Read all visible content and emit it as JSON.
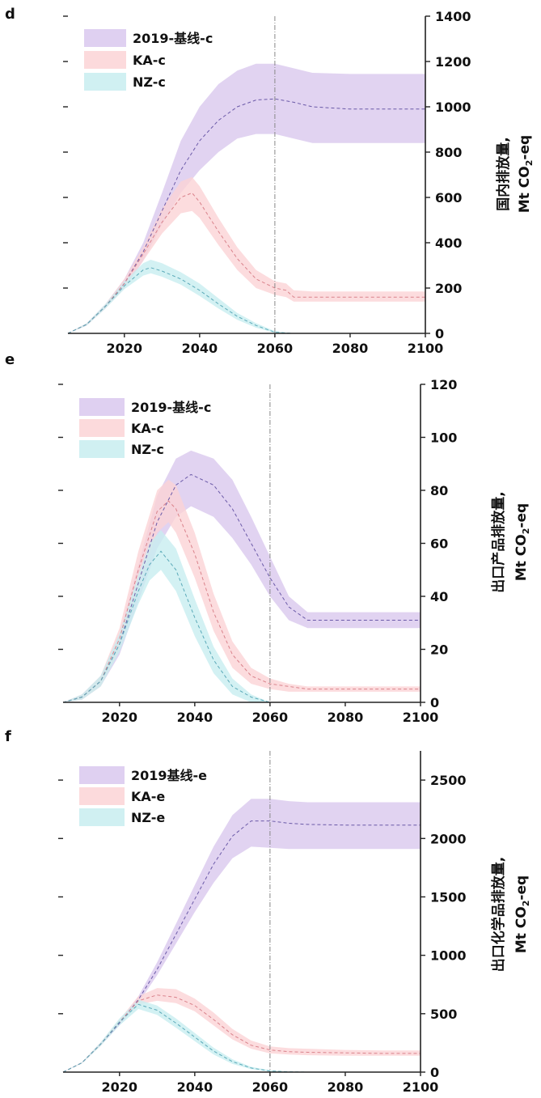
{
  "colors": {
    "purple_fill": "#d9c8ee",
    "purple_line": "#6b5aa8",
    "pink_fill": "#fbd3d6",
    "pink_line": "#d9828b",
    "cyan_fill": "#c8edf0",
    "cyan_line": "#5aa9b8"
  },
  "chart_data": [
    {
      "type": "area",
      "panel": "d",
      "ylabel_line1": "国内排放量,",
      "ylabel_line2_prefix": "Mt CO",
      "ylabel_line2_sub": "2",
      "ylabel_line2_suffix": "-eq",
      "xlim": [
        2005,
        2100
      ],
      "ylim": [
        0,
        1400
      ],
      "xticks": [
        2020,
        2040,
        2060,
        2080,
        2100
      ],
      "yticks": [
        0,
        200,
        400,
        600,
        800,
        1000,
        1200,
        1400
      ],
      "vline": 2060,
      "legend_position": "top-left",
      "series": [
        {
          "name": "2019-基线-c",
          "color": "purple",
          "x": [
            2005,
            2010,
            2015,
            2020,
            2025,
            2030,
            2035,
            2040,
            2045,
            2050,
            2055,
            2060,
            2065,
            2070,
            2080,
            2090,
            2100
          ],
          "median": [
            0,
            40,
            120,
            220,
            360,
            540,
            720,
            850,
            940,
            1000,
            1030,
            1035,
            1020,
            1000,
            990,
            990,
            990
          ],
          "lower": [
            0,
            35,
            110,
            200,
            320,
            480,
            620,
            720,
            800,
            860,
            880,
            880,
            860,
            840,
            840,
            840,
            840
          ],
          "upper": [
            0,
            45,
            130,
            240,
            400,
            620,
            850,
            1000,
            1100,
            1160,
            1190,
            1190,
            1170,
            1150,
            1145,
            1145,
            1145
          ]
        },
        {
          "name": "KA-c",
          "color": "pink",
          "x": [
            2005,
            2010,
            2015,
            2020,
            2025,
            2030,
            2035,
            2038,
            2040,
            2045,
            2050,
            2055,
            2060,
            2063,
            2065,
            2070,
            2080,
            2090,
            2100
          ],
          "median": [
            0,
            40,
            120,
            220,
            350,
            490,
            600,
            620,
            580,
            450,
            330,
            240,
            200,
            190,
            160,
            160,
            160,
            160,
            160
          ],
          "lower": [
            0,
            35,
            110,
            200,
            320,
            440,
            530,
            540,
            510,
            390,
            280,
            200,
            170,
            160,
            140,
            140,
            140,
            140,
            140
          ],
          "upper": [
            0,
            45,
            130,
            240,
            380,
            550,
            670,
            690,
            650,
            510,
            380,
            280,
            230,
            220,
            190,
            185,
            185,
            185,
            185
          ]
        },
        {
          "name": "NZ-c",
          "color": "cyan",
          "x": [
            2005,
            2010,
            2015,
            2020,
            2025,
            2027,
            2030,
            2035,
            2040,
            2045,
            2050,
            2055,
            2060,
            2065,
            2070,
            2080,
            2090,
            2100
          ],
          "median": [
            0,
            40,
            120,
            210,
            280,
            290,
            275,
            240,
            190,
            130,
            75,
            35,
            5,
            0,
            0,
            0,
            0,
            0
          ],
          "lower": [
            0,
            35,
            110,
            195,
            255,
            265,
            250,
            215,
            165,
            110,
            60,
            25,
            2,
            0,
            0,
            0,
            0,
            0
          ],
          "upper": [
            0,
            45,
            130,
            230,
            310,
            325,
            310,
            270,
            220,
            155,
            90,
            45,
            10,
            0,
            0,
            0,
            0,
            0
          ]
        }
      ]
    },
    {
      "type": "area",
      "panel": "e",
      "ylabel_line1": "出口产品排放量,",
      "ylabel_line2_prefix": "Mt CO",
      "ylabel_line2_sub": "2",
      "ylabel_line2_suffix": "-eq",
      "xlim": [
        2005,
        2100
      ],
      "ylim": [
        0,
        120
      ],
      "xticks": [
        2020,
        2040,
        2060,
        2080,
        2100
      ],
      "yticks": [
        0,
        20,
        40,
        60,
        80,
        100,
        120
      ],
      "vline": 2060,
      "legend_position": "top-left",
      "series": [
        {
          "name": "2019-基线-c",
          "color": "purple",
          "x": [
            2005,
            2010,
            2015,
            2020,
            2025,
            2030,
            2035,
            2039,
            2045,
            2050,
            2055,
            2060,
            2065,
            2070,
            2080,
            2090,
            2100
          ],
          "median": [
            0,
            2,
            8,
            22,
            45,
            68,
            82,
            86,
            82,
            73,
            60,
            47,
            36,
            31,
            31,
            31,
            31
          ],
          "lower": [
            0,
            1,
            6,
            18,
            38,
            58,
            70,
            74,
            70,
            62,
            52,
            40,
            31,
            28,
            28,
            28,
            28
          ],
          "upper": [
            0,
            3,
            10,
            26,
            52,
            78,
            92,
            95,
            92,
            84,
            70,
            55,
            40,
            34,
            34,
            34,
            34
          ]
        },
        {
          "name": "KA-c",
          "color": "pink",
          "x": [
            2005,
            2010,
            2015,
            2020,
            2025,
            2030,
            2033,
            2035,
            2040,
            2045,
            2050,
            2055,
            2060,
            2065,
            2070,
            2080,
            2090,
            2100
          ],
          "median": [
            0,
            2,
            8,
            24,
            50,
            72,
            76,
            73,
            56,
            34,
            18,
            10,
            7,
            6,
            5,
            5,
            5,
            5
          ],
          "lower": [
            0,
            1,
            6,
            20,
            44,
            64,
            68,
            64,
            47,
            27,
            13,
            7,
            5,
            4,
            4,
            4,
            4,
            4
          ],
          "upper": [
            0,
            3,
            10,
            28,
            57,
            80,
            84,
            82,
            64,
            41,
            23,
            13,
            9,
            7,
            6,
            6,
            6,
            6
          ]
        },
        {
          "name": "NZ-c",
          "color": "cyan",
          "x": [
            2005,
            2010,
            2015,
            2020,
            2025,
            2028,
            2031,
            2035,
            2040,
            2045,
            2050,
            2055,
            2060,
            2065,
            2070,
            2080,
            2090,
            2100
          ],
          "median": [
            0,
            2,
            8,
            22,
            42,
            52,
            57,
            50,
            32,
            16,
            6,
            2,
            0,
            0,
            0,
            0,
            0,
            0
          ],
          "lower": [
            0,
            1,
            6,
            19,
            37,
            46,
            50,
            42,
            25,
            11,
            3,
            0,
            0,
            0,
            0,
            0,
            0,
            0
          ],
          "upper": [
            0,
            3,
            10,
            26,
            48,
            60,
            65,
            58,
            39,
            21,
            9,
            3,
            0,
            0,
            0,
            0,
            0,
            0
          ]
        }
      ]
    },
    {
      "type": "area",
      "panel": "f",
      "ylabel_line1": "出口化学品排放量,",
      "ylabel_line2_prefix": "Mt CO",
      "ylabel_line2_sub": "2",
      "ylabel_line2_suffix": "-eq",
      "xlim": [
        2005,
        2100
      ],
      "ylim": [
        0,
        2750
      ],
      "xticks": [
        2020,
        2040,
        2060,
        2080,
        2100
      ],
      "yticks": [
        0,
        500,
        1000,
        1500,
        2000,
        2500
      ],
      "vline": 2060,
      "legend_position": "top-left",
      "series": [
        {
          "name": "2019基线-e",
          "color": "purple",
          "x": [
            2005,
            2010,
            2015,
            2020,
            2025,
            2030,
            2035,
            2040,
            2045,
            2050,
            2055,
            2060,
            2065,
            2070,
            2080,
            2090,
            2100
          ],
          "median": [
            0,
            80,
            240,
            420,
            620,
            880,
            1180,
            1480,
            1780,
            2020,
            2150,
            2150,
            2130,
            2120,
            2115,
            2115,
            2115
          ],
          "lower": [
            0,
            75,
            225,
            400,
            590,
            830,
            1100,
            1370,
            1620,
            1830,
            1930,
            1920,
            1910,
            1910,
            1910,
            1910,
            1910
          ],
          "upper": [
            0,
            85,
            255,
            440,
            650,
            940,
            1270,
            1600,
            1930,
            2200,
            2340,
            2340,
            2320,
            2310,
            2310,
            2310,
            2310
          ]
        },
        {
          "name": "KA-e",
          "color": "pink",
          "x": [
            2005,
            2010,
            2015,
            2020,
            2025,
            2030,
            2035,
            2040,
            2045,
            2050,
            2055,
            2060,
            2065,
            2070,
            2080,
            2090,
            2100
          ],
          "median": [
            0,
            80,
            240,
            430,
            610,
            660,
            640,
            570,
            450,
            320,
            230,
            190,
            175,
            170,
            165,
            160,
            160
          ],
          "lower": [
            0,
            75,
            225,
            410,
            580,
            610,
            590,
            520,
            400,
            280,
            200,
            160,
            150,
            145,
            140,
            140,
            140
          ],
          "upper": [
            0,
            85,
            255,
            450,
            650,
            720,
            710,
            630,
            510,
            370,
            270,
            220,
            205,
            200,
            190,
            185,
            185
          ]
        },
        {
          "name": "NZ-e",
          "color": "cyan",
          "x": [
            2005,
            2010,
            2015,
            2020,
            2025,
            2030,
            2035,
            2040,
            2045,
            2050,
            2055,
            2060,
            2065,
            2070,
            2080,
            2090,
            2100
          ],
          "median": [
            0,
            80,
            240,
            430,
            580,
            530,
            420,
            300,
            180,
            90,
            35,
            10,
            3,
            0,
            0,
            0,
            0
          ],
          "lower": [
            0,
            75,
            225,
            400,
            540,
            490,
            380,
            265,
            150,
            70,
            25,
            5,
            0,
            0,
            0,
            0,
            0
          ],
          "upper": [
            0,
            85,
            255,
            460,
            620,
            570,
            460,
            335,
            210,
            110,
            45,
            15,
            5,
            0,
            0,
            0,
            0
          ]
        }
      ]
    }
  ]
}
